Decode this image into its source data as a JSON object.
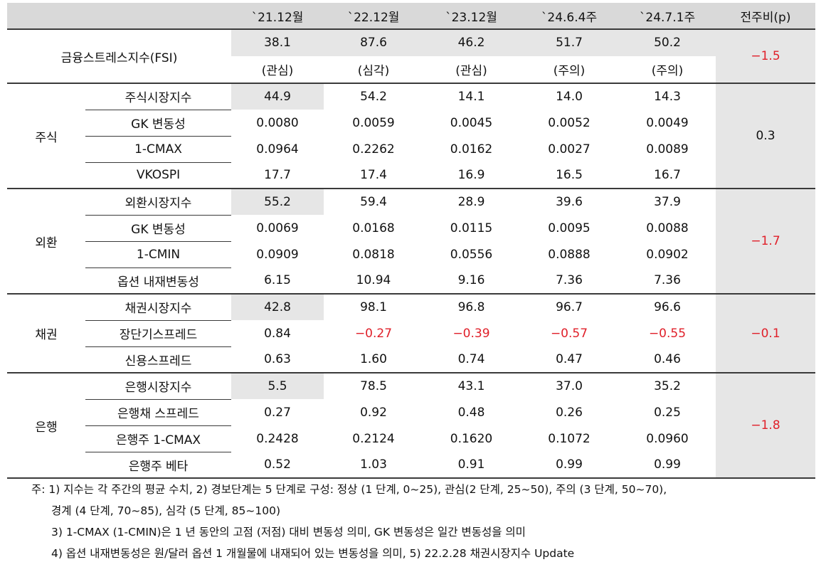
{
  "header": {
    "col1": "",
    "col2": "",
    "periods": [
      "`21.12월",
      "`22.12월",
      "`23.12월",
      "`24.6.4주",
      "`24.7.1주"
    ],
    "change": "전주비(p)"
  },
  "fsi": {
    "label": "금융스트레스지수(FSI)",
    "values": [
      "38.1",
      "87.6",
      "46.2",
      "51.7",
      "50.2"
    ],
    "stages": [
      "(관심)",
      "(심각)",
      "(관심)",
      "(주의)",
      "(주의)"
    ],
    "change": "-1.5"
  },
  "sections": [
    {
      "name": "주식",
      "change": "0.3",
      "rows": [
        {
          "label": "주식시장지수",
          "values": [
            "44.9",
            "54.2",
            "14.1",
            "14.0",
            "14.3"
          ]
        },
        {
          "label": "GK 변동성",
          "values": [
            "0.0080",
            "0.0059",
            "0.0045",
            "0.0052",
            "0.0049"
          ]
        },
        {
          "label": "1-CMAX",
          "values": [
            "0.0964",
            "0.2262",
            "0.0162",
            "0.0027",
            "0.0089"
          ]
        },
        {
          "label": "VKOSPI",
          "values": [
            "17.7",
            "17.4",
            "16.9",
            "16.5",
            "16.7"
          ]
        }
      ]
    },
    {
      "name": "외환",
      "change": "-1.7",
      "rows": [
        {
          "label": "외환시장지수",
          "values": [
            "55.2",
            "59.4",
            "28.9",
            "39.6",
            "37.9"
          ]
        },
        {
          "label": "GK 변동성",
          "values": [
            "0.0069",
            "0.0168",
            "0.0115",
            "0.0095",
            "0.0088"
          ]
        },
        {
          "label": "1-CMIN",
          "values": [
            "0.0909",
            "0.0818",
            "0.0556",
            "0.0888",
            "0.0902"
          ]
        },
        {
          "label": "옵션 내재변동성",
          "values": [
            "6.15",
            "10.94",
            "9.16",
            "7.36",
            "7.36"
          ]
        }
      ]
    },
    {
      "name": "채권",
      "change": "-0.1",
      "rows": [
        {
          "label": "채권시장지수",
          "values": [
            "42.8",
            "98.1",
            "96.8",
            "96.7",
            "96.6"
          ]
        },
        {
          "label": "장단기스프레드",
          "values": [
            "0.84",
            "-0.27",
            "-0.39",
            "-0.57",
            "-0.55"
          ]
        },
        {
          "label": "신용스프레드",
          "values": [
            "0.63",
            "1.60",
            "0.74",
            "0.47",
            "0.46"
          ]
        }
      ]
    },
    {
      "name": "은행",
      "change": "-1.8",
      "rows": [
        {
          "label": "은행시장지수",
          "values": [
            "5.5",
            "78.5",
            "43.1",
            "37.0",
            "35.2"
          ]
        },
        {
          "label": "은행채 스프레드",
          "values": [
            "0.27",
            "0.92",
            "0.48",
            "0.26",
            "0.25"
          ]
        },
        {
          "label": "은행주 1-CMAX",
          "values": [
            "0.2428",
            "0.2124",
            "0.1620",
            "0.1072",
            "0.0960"
          ]
        },
        {
          "label": "은행주 베타",
          "values": [
            "0.52",
            "1.03",
            "0.91",
            "0.99",
            "0.99"
          ]
        }
      ]
    }
  ],
  "notes": [
    "주: 1) 지수는 각 주간의 평균 수치, 2) 경보단계는 5 단계로 구성: 정상 (1 단계, 0~25), 관심(2 단계, 25~50), 주의 (3 단계, 50~70),",
    "경계 (4 단계, 70~85), 심각 (5 단계, 85~100)",
    "3) 1-CMAX (1-CMIN)은 1 년 동안의 고점 (저점) 대비 변동성 의미, GK 변동성은 일간 변동성을 의미",
    "4) 옵션 내재변동성은 원/달러 옵션 1 개월물에 내재되어 있는 변동성을 의미, 5) 22.2.28 채권시장지수 Update"
  ],
  "colors": {
    "header_bg": "#d9d9d9",
    "gray_cell": "#e6e6e6",
    "negative": "#e0202a",
    "rule": "#3a3a3a"
  }
}
